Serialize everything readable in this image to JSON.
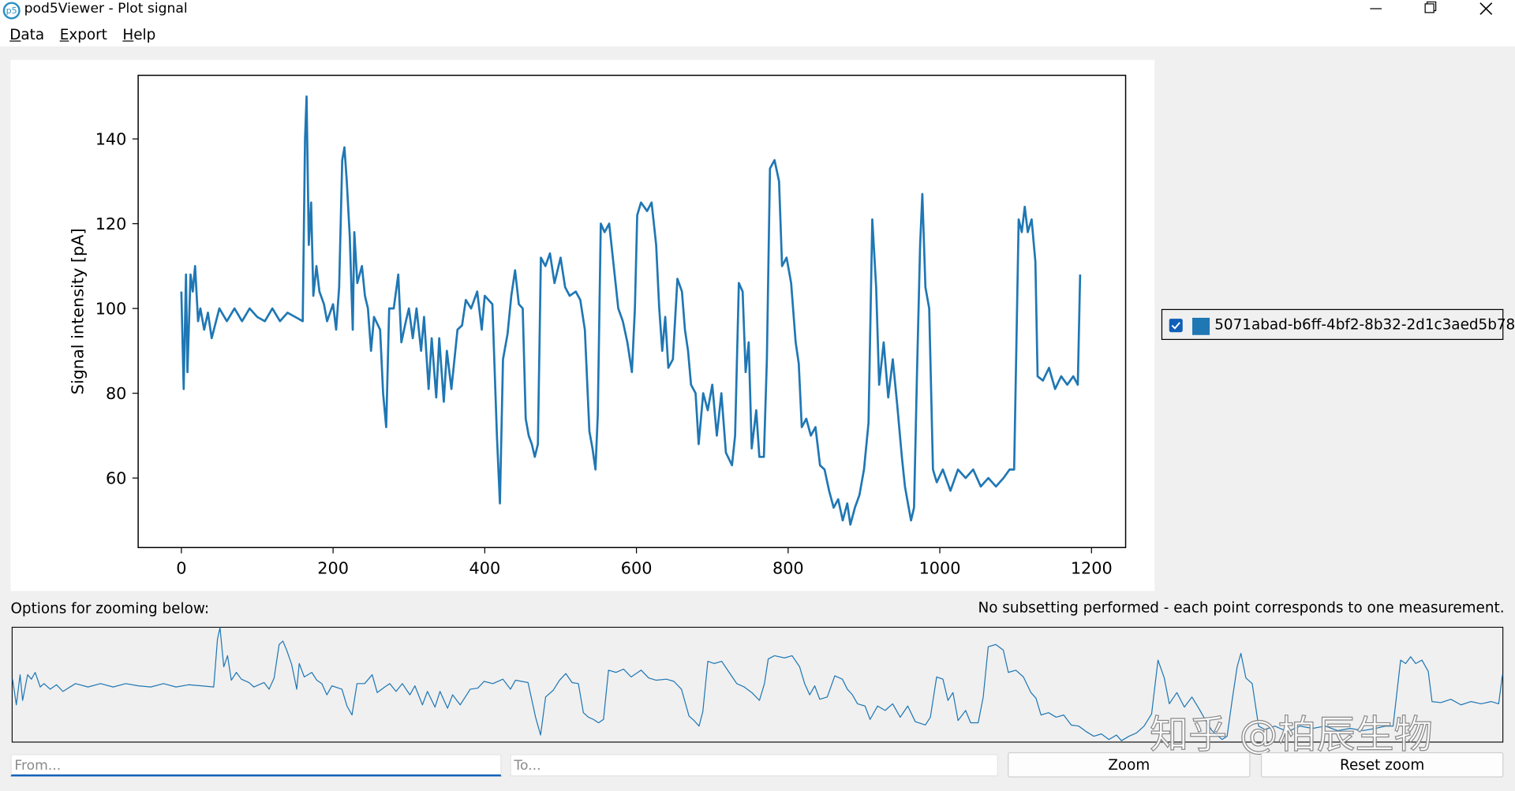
{
  "window": {
    "title": "pod5Viewer - Plot signal"
  },
  "menu": [
    "Data",
    "Export",
    "Help"
  ],
  "chart_data": {
    "type": "line",
    "y_label": "Signal intensity [pA]",
    "x": [
      0,
      3,
      6,
      8,
      12,
      15,
      18,
      22,
      25,
      30,
      35,
      40,
      50,
      60,
      70,
      80,
      90,
      100,
      110,
      120,
      130,
      140,
      150,
      160,
      163,
      165,
      168,
      171,
      174,
      178,
      182,
      188,
      192,
      200,
      204,
      208,
      212,
      215,
      218,
      222,
      226,
      228,
      232,
      238,
      242,
      246,
      250,
      254,
      262,
      266,
      270,
      274,
      280,
      286,
      290,
      296,
      300,
      305,
      310,
      316,
      320,
      326,
      330,
      336,
      340,
      346,
      350,
      356,
      364,
      370,
      375,
      382,
      390,
      396,
      400,
      410,
      416,
      420,
      424,
      430,
      435,
      440,
      445,
      450,
      454,
      458,
      462,
      466,
      470,
      474,
      480,
      486,
      492,
      500,
      506,
      512,
      520,
      526,
      532,
      538,
      542,
      546,
      549,
      553,
      558,
      564,
      570,
      576,
      582,
      588,
      594,
      598,
      601,
      606,
      614,
      620,
      626,
      630,
      634,
      638,
      642,
      648,
      654,
      660,
      664,
      668,
      672,
      678,
      682,
      688,
      694,
      700,
      706,
      712,
      718,
      726,
      730,
      735,
      740,
      744,
      748,
      752,
      758,
      762,
      768,
      772,
      776,
      782,
      788,
      792,
      798,
      804,
      810,
      814,
      818,
      824,
      830,
      836,
      842,
      848,
      854,
      860,
      866,
      872,
      878,
      882,
      888,
      894,
      900,
      906,
      911,
      916,
      920,
      926,
      932,
      938,
      944,
      950,
      954,
      958,
      962,
      966,
      970,
      974,
      977,
      981,
      986,
      991,
      996,
      1004,
      1014,
      1024,
      1034,
      1044,
      1054,
      1064,
      1074,
      1084,
      1092,
      1098,
      1104,
      1108,
      1112,
      1116,
      1121,
      1126,
      1129,
      1136,
      1144,
      1152,
      1160,
      1168,
      1176,
      1182,
      1185
    ],
    "series": [
      {
        "name": "5071abad-b6ff-4bf2-8b32-2d1c3aed5b78",
        "color": "#1f77b4",
        "values": [
          104,
          81,
          108,
          85,
          108,
          104,
          110,
          97,
          100,
          95,
          99,
          93,
          100,
          97,
          100,
          97,
          100,
          98,
          97,
          100,
          97,
          99,
          98,
          97,
          140,
          150,
          115,
          125,
          103,
          110,
          104,
          101,
          97,
          101,
          95,
          105,
          135,
          138,
          130,
          117,
          95,
          118,
          106,
          110,
          103,
          100,
          90,
          98,
          95,
          80,
          72,
          100,
          100,
          108,
          92,
          97,
          100,
          93,
          100,
          90,
          98,
          81,
          93,
          79,
          93,
          78,
          90,
          81,
          95,
          96,
          102,
          100,
          104,
          95,
          103,
          101,
          70,
          54,
          88,
          94,
          103,
          109,
          101,
          100,
          74,
          70,
          68,
          65,
          68,
          112,
          110,
          113,
          106,
          112,
          105,
          103,
          104,
          102,
          95,
          71,
          67,
          62,
          75,
          120,
          118,
          120,
          110,
          100,
          97,
          92,
          85,
          100,
          122,
          125,
          123,
          125,
          115,
          100,
          90,
          98,
          86,
          88,
          107,
          104,
          95,
          90,
          82,
          80,
          68,
          80,
          76,
          82,
          70,
          80,
          66,
          63,
          70,
          106,
          104,
          85,
          92,
          67,
          76,
          65,
          65,
          88,
          133,
          135,
          130,
          110,
          112,
          106,
          92,
          87,
          72,
          74,
          70,
          72,
          63,
          62,
          57,
          53,
          55,
          50,
          54,
          49,
          53,
          56,
          62,
          73,
          121,
          105,
          82,
          92,
          79,
          88,
          77,
          65,
          58,
          54,
          50,
          53,
          85,
          115,
          127,
          105,
          100,
          62,
          59,
          62,
          57,
          62,
          60,
          62,
          58,
          60,
          58,
          60,
          62,
          62,
          121,
          118,
          124,
          118,
          121,
          111,
          84,
          83,
          86,
          81,
          84,
          82,
          84,
          82,
          108
        ]
      }
    ],
    "xlim": [
      -57,
      1245
    ],
    "ylim": [
      43.6,
      155
    ],
    "xticks": [
      0,
      200,
      400,
      600,
      800,
      1000,
      1200
    ],
    "yticks": [
      60,
      80,
      100,
      120,
      140
    ]
  },
  "zoom_label": "Options for zooming below:",
  "status": "No subsetting performed - each point corresponds to one measurement.",
  "inputs": {
    "from": "From...",
    "to": "To..."
  },
  "buttons": [
    "Zoom",
    "Reset zoom"
  ],
  "watermark": "知乎 @柏辰生物"
}
